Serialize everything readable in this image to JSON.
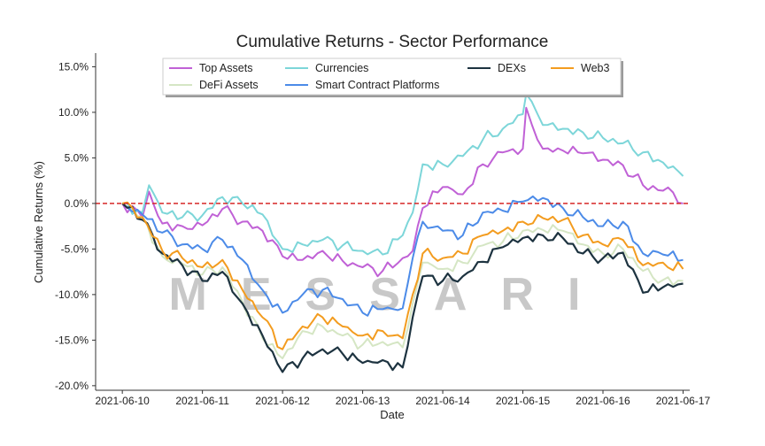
{
  "chart_data": {
    "type": "line",
    "title": "Cumulative Returns - Sector Performance",
    "xlabel": "Date",
    "ylabel": "Cumulative Returns (%)",
    "watermark": "MESSARI",
    "x_ticks": [
      "2021-06-10",
      "2021-06-11",
      "2021-06-12",
      "2021-06-13",
      "2021-06-14",
      "2021-06-15",
      "2021-06-16",
      "2021-06-17"
    ],
    "y_ticks": [
      "15.0%",
      "10.0%",
      "5.0%",
      "0.0%",
      "-5.0%",
      "-10.0%",
      "-15.0%",
      "-20.0%"
    ],
    "xlim": [
      "2021-06-09T16:00",
      "2021-06-17T02:00"
    ],
    "ylim": [
      -20.5,
      16.5
    ],
    "reference_line": {
      "y": 0,
      "style": "dashed",
      "color": "#d62728"
    },
    "legend_position": "top",
    "grid": false,
    "series": [
      {
        "name": "Top Assets",
        "color": "#c061d6",
        "points": [
          [
            "2021-06-10T00:00",
            0
          ],
          [
            "2021-06-10T06:00",
            -1.5
          ],
          [
            "2021-06-10T08:00",
            1.3
          ],
          [
            "2021-06-10T12:00",
            -2.2
          ],
          [
            "2021-06-10T18:00",
            -2.5
          ],
          [
            "2021-06-11T00:00",
            -2.4
          ],
          [
            "2021-06-11T06:00",
            -0.6
          ],
          [
            "2021-06-11T12:00",
            -2.0
          ],
          [
            "2021-06-11T18:00",
            -3.0
          ],
          [
            "2021-06-12T00:00",
            -5.8
          ],
          [
            "2021-06-12T06:00",
            -6.2
          ],
          [
            "2021-06-12T12:00",
            -5.2
          ],
          [
            "2021-06-12T18:00",
            -6.3
          ],
          [
            "2021-06-13T00:00",
            -7.0
          ],
          [
            "2021-06-13T06:00",
            -7.4
          ],
          [
            "2021-06-13T12:00",
            -6.0
          ],
          [
            "2021-06-13T15:00",
            -5.2
          ],
          [
            "2021-06-13T18:00",
            -0.5
          ],
          [
            "2021-06-14T00:00",
            1.8
          ],
          [
            "2021-06-14T06:00",
            1.0
          ],
          [
            "2021-06-14T12:00",
            4.3
          ],
          [
            "2021-06-14T18:00",
            5.6
          ],
          [
            "2021-06-15T00:00",
            6.0
          ],
          [
            "2021-06-15T01:00",
            10.5
          ],
          [
            "2021-06-15T06:00",
            6.0
          ],
          [
            "2021-06-15T12:00",
            5.8
          ],
          [
            "2021-06-15T18:00",
            5.5
          ],
          [
            "2021-06-16T00:00",
            4.8
          ],
          [
            "2021-06-16T06:00",
            4.2
          ],
          [
            "2021-06-16T12:00",
            2.0
          ],
          [
            "2021-06-16T18:00",
            1.4
          ],
          [
            "2021-06-16T21:00",
            1.2
          ],
          [
            "2021-06-17T00:00",
            0.0
          ]
        ]
      },
      {
        "name": "DeFi Assets",
        "color": "#d5e6c4",
        "points": [
          [
            "2021-06-10T00:00",
            0
          ],
          [
            "2021-06-10T06:00",
            -1.5
          ],
          [
            "2021-06-10T12:00",
            -5.8
          ],
          [
            "2021-06-10T18:00",
            -6.6
          ],
          [
            "2021-06-11T00:00",
            -7.8
          ],
          [
            "2021-06-11T06:00",
            -7.0
          ],
          [
            "2021-06-11T12:00",
            -10.8
          ],
          [
            "2021-06-11T18:00",
            -14.8
          ],
          [
            "2021-06-12T00:00",
            -17.0
          ],
          [
            "2021-06-12T06:00",
            -14.0
          ],
          [
            "2021-06-12T12:00",
            -13.5
          ],
          [
            "2021-06-12T18:00",
            -14.5
          ],
          [
            "2021-06-13T00:00",
            -15.5
          ],
          [
            "2021-06-13T06:00",
            -15.2
          ],
          [
            "2021-06-13T12:00",
            -15.8
          ],
          [
            "2021-06-13T15:00",
            -11.0
          ],
          [
            "2021-06-13T18:00",
            -6.5
          ],
          [
            "2021-06-14T00:00",
            -7.2
          ],
          [
            "2021-06-14T06:00",
            -6.5
          ],
          [
            "2021-06-14T12:00",
            -4.6
          ],
          [
            "2021-06-14T18:00",
            -4.2
          ],
          [
            "2021-06-15T00:00",
            -3.0
          ],
          [
            "2021-06-15T06:00",
            -2.9
          ],
          [
            "2021-06-15T12:00",
            -3.0
          ],
          [
            "2021-06-15T18:00",
            -4.5
          ],
          [
            "2021-06-16T00:00",
            -5.5
          ],
          [
            "2021-06-16T06:00",
            -5.0
          ],
          [
            "2021-06-16T12:00",
            -7.4
          ],
          [
            "2021-06-16T18:00",
            -8.4
          ],
          [
            "2021-06-17T00:00",
            -8.5
          ]
        ]
      },
      {
        "name": "Currencies",
        "color": "#7dd6d9",
        "points": [
          [
            "2021-06-10T00:00",
            0
          ],
          [
            "2021-06-10T06:00",
            -1.0
          ],
          [
            "2021-06-10T08:00",
            2.0
          ],
          [
            "2021-06-10T12:00",
            -1.0
          ],
          [
            "2021-06-10T18:00",
            -1.5
          ],
          [
            "2021-06-11T00:00",
            -1.3
          ],
          [
            "2021-06-11T06:00",
            0.7
          ],
          [
            "2021-06-11T12:00",
            0.0
          ],
          [
            "2021-06-11T18:00",
            -1.2
          ],
          [
            "2021-06-12T00:00",
            -5.0
          ],
          [
            "2021-06-12T06:00",
            -4.5
          ],
          [
            "2021-06-12T12:00",
            -4.0
          ],
          [
            "2021-06-12T18:00",
            -4.6
          ],
          [
            "2021-06-13T00:00",
            -5.2
          ],
          [
            "2021-06-13T06:00",
            -5.6
          ],
          [
            "2021-06-13T12:00",
            -3.5
          ],
          [
            "2021-06-13T15:00",
            -1.0
          ],
          [
            "2021-06-13T18:00",
            4.3
          ],
          [
            "2021-06-14T00:00",
            4.3
          ],
          [
            "2021-06-14T06:00",
            5.2
          ],
          [
            "2021-06-14T12:00",
            7.0
          ],
          [
            "2021-06-14T18:00",
            8.2
          ],
          [
            "2021-06-15T00:00",
            9.8
          ],
          [
            "2021-06-15T01:00",
            12.0
          ],
          [
            "2021-06-15T06:00",
            8.6
          ],
          [
            "2021-06-15T12:00",
            8.2
          ],
          [
            "2021-06-15T18:00",
            7.8
          ],
          [
            "2021-06-16T00:00",
            7.2
          ],
          [
            "2021-06-16T06:00",
            6.6
          ],
          [
            "2021-06-16T12:00",
            5.6
          ],
          [
            "2021-06-16T18:00",
            4.5
          ],
          [
            "2021-06-17T00:00",
            3.0
          ]
        ]
      },
      {
        "name": "Smart Contract Platforms",
        "color": "#4c8be8",
        "points": [
          [
            "2021-06-10T00:00",
            0
          ],
          [
            "2021-06-10T06:00",
            -1.2
          ],
          [
            "2021-06-10T12:00",
            -3.2
          ],
          [
            "2021-06-10T18:00",
            -4.5
          ],
          [
            "2021-06-11T00:00",
            -5.0
          ],
          [
            "2021-06-11T06:00",
            -4.0
          ],
          [
            "2021-06-11T12:00",
            -6.2
          ],
          [
            "2021-06-11T18:00",
            -9.5
          ],
          [
            "2021-06-12T00:00",
            -12.0
          ],
          [
            "2021-06-12T06:00",
            -10.0
          ],
          [
            "2021-06-12T12:00",
            -9.5
          ],
          [
            "2021-06-12T18:00",
            -10.5
          ],
          [
            "2021-06-13T00:00",
            -12.0
          ],
          [
            "2021-06-13T06:00",
            -11.6
          ],
          [
            "2021-06-13T12:00",
            -11.5
          ],
          [
            "2021-06-13T15:00",
            -6.0
          ],
          [
            "2021-06-13T18:00",
            -2.0
          ],
          [
            "2021-06-14T00:00",
            -3.0
          ],
          [
            "2021-06-14T06:00",
            -3.5
          ],
          [
            "2021-06-14T12:00",
            -1.0
          ],
          [
            "2021-06-14T18:00",
            -0.8
          ],
          [
            "2021-06-15T00:00",
            0.2
          ],
          [
            "2021-06-15T06:00",
            0.6
          ],
          [
            "2021-06-15T12:00",
            -0.5
          ],
          [
            "2021-06-15T18:00",
            -1.5
          ],
          [
            "2021-06-16T00:00",
            -2.5
          ],
          [
            "2021-06-16T06:00",
            -2.0
          ],
          [
            "2021-06-16T12:00",
            -5.5
          ],
          [
            "2021-06-16T18:00",
            -5.6
          ],
          [
            "2021-06-17T00:00",
            -6.2
          ]
        ]
      },
      {
        "name": "DEXs",
        "color": "#1d3340",
        "points": [
          [
            "2021-06-10T00:00",
            0
          ],
          [
            "2021-06-10T06:00",
            -1.8
          ],
          [
            "2021-06-10T12:00",
            -5.5
          ],
          [
            "2021-06-10T18:00",
            -6.8
          ],
          [
            "2021-06-11T00:00",
            -8.5
          ],
          [
            "2021-06-11T06:00",
            -7.5
          ],
          [
            "2021-06-11T12:00",
            -11.0
          ],
          [
            "2021-06-11T18:00",
            -14.5
          ],
          [
            "2021-06-12T00:00",
            -18.5
          ],
          [
            "2021-06-12T06:00",
            -17.0
          ],
          [
            "2021-06-12T12:00",
            -16.0
          ],
          [
            "2021-06-12T18:00",
            -16.5
          ],
          [
            "2021-06-13T00:00",
            -17.5
          ],
          [
            "2021-06-13T06:00",
            -17.2
          ],
          [
            "2021-06-13T12:00",
            -18.0
          ],
          [
            "2021-06-13T15:00",
            -12.5
          ],
          [
            "2021-06-13T18:00",
            -8.0
          ],
          [
            "2021-06-14T00:00",
            -8.5
          ],
          [
            "2021-06-14T06:00",
            -8.0
          ],
          [
            "2021-06-14T12:00",
            -6.4
          ],
          [
            "2021-06-14T18:00",
            -4.8
          ],
          [
            "2021-06-15T00:00",
            -3.8
          ],
          [
            "2021-06-15T06:00",
            -3.5
          ],
          [
            "2021-06-15T12:00",
            -3.8
          ],
          [
            "2021-06-15T18:00",
            -5.5
          ],
          [
            "2021-06-16T00:00",
            -6.0
          ],
          [
            "2021-06-16T06:00",
            -5.4
          ],
          [
            "2021-06-16T12:00",
            -9.8
          ],
          [
            "2021-06-16T18:00",
            -9.2
          ],
          [
            "2021-06-17T00:00",
            -8.8
          ]
        ]
      },
      {
        "name": "Web3",
        "color": "#f39c1f",
        "points": [
          [
            "2021-06-10T00:00",
            0
          ],
          [
            "2021-06-10T06:00",
            -1.5
          ],
          [
            "2021-06-10T12:00",
            -5.2
          ],
          [
            "2021-06-10T18:00",
            -6.0
          ],
          [
            "2021-06-11T00:00",
            -7.0
          ],
          [
            "2021-06-11T06:00",
            -6.2
          ],
          [
            "2021-06-11T12:00",
            -9.5
          ],
          [
            "2021-06-11T18:00",
            -12.5
          ],
          [
            "2021-06-12T00:00",
            -16.0
          ],
          [
            "2021-06-12T06:00",
            -13.5
          ],
          [
            "2021-06-12T12:00",
            -12.5
          ],
          [
            "2021-06-12T18:00",
            -13.5
          ],
          [
            "2021-06-13T00:00",
            -14.5
          ],
          [
            "2021-06-13T06:00",
            -14.0
          ],
          [
            "2021-06-13T12:00",
            -14.8
          ],
          [
            "2021-06-13T15:00",
            -10.0
          ],
          [
            "2021-06-13T18:00",
            -5.5
          ],
          [
            "2021-06-14T00:00",
            -6.0
          ],
          [
            "2021-06-14T06:00",
            -5.5
          ],
          [
            "2021-06-14T12:00",
            -3.5
          ],
          [
            "2021-06-14T18:00",
            -3.0
          ],
          [
            "2021-06-15T00:00",
            -2.0
          ],
          [
            "2021-06-15T06:00",
            -1.6
          ],
          [
            "2021-06-15T12:00",
            -1.8
          ],
          [
            "2021-06-15T18:00",
            -3.5
          ],
          [
            "2021-06-16T00:00",
            -4.5
          ],
          [
            "2021-06-16T06:00",
            -4.0
          ],
          [
            "2021-06-16T12:00",
            -6.8
          ],
          [
            "2021-06-16T18:00",
            -6.5
          ],
          [
            "2021-06-17T00:00",
            -7.2
          ]
        ]
      }
    ]
  }
}
